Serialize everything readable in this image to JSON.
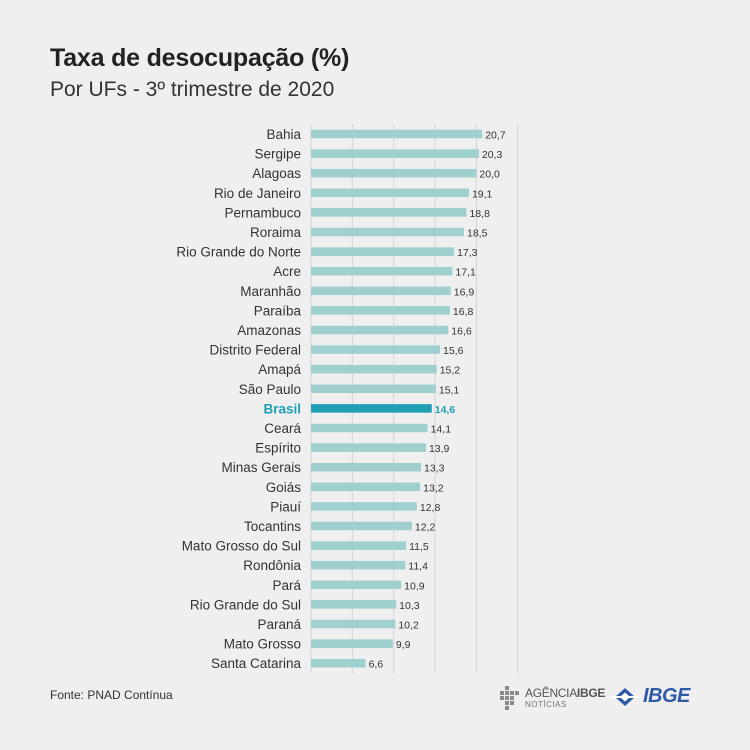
{
  "header": {
    "title": "Taxa de desocupação (%)",
    "subtitle": "Por UFs - 3º trimestre de 2020"
  },
  "footer": {
    "source": "Fonte: PNAD Contínua",
    "agencia_main": "AGÊNCIA",
    "agencia_bold": "IBGE",
    "agencia_sub": "NOTÍCIAS",
    "ibge_logo": "IBGE"
  },
  "colors": {
    "bar": "#9fcfcf",
    "highlight_bar": "#1f9fb4",
    "highlight_text": "#1f9fb4",
    "grid": "#d4d4d4",
    "brand_blue": "#2e5aa8"
  },
  "chart_data": {
    "type": "bar",
    "orientation": "horizontal",
    "highlight": "Brasil",
    "categories": [
      "Bahia",
      "Sergipe",
      "Alagoas",
      "Rio de Janeiro",
      "Pernambuco",
      "Roraima",
      "Rio Grande do Norte",
      "Acre",
      "Maranhão",
      "Paraíba",
      "Amazonas",
      "Distrito Federal",
      "Amapá",
      "São Paulo",
      "Brasil",
      "Ceará",
      "Espírito",
      "Minas Gerais",
      "Goiás",
      "Piauí",
      "Tocantins",
      "Mato Grosso do Sul",
      "Rondônia",
      "Pará",
      "Rio Grande do Sul",
      "Paraná",
      "Mato Grosso",
      "Santa Catarina"
    ],
    "values": [
      20.7,
      20.3,
      20.0,
      19.1,
      18.8,
      18.5,
      17.3,
      17.1,
      16.9,
      16.8,
      16.6,
      15.6,
      15.2,
      15.1,
      14.6,
      14.1,
      13.9,
      13.3,
      13.2,
      12.8,
      12.2,
      11.5,
      11.4,
      10.9,
      10.3,
      10.2,
      9.9,
      6.6
    ],
    "value_labels": [
      "20,7",
      "20,3",
      "20,0",
      "19,1",
      "18,8",
      "18,5",
      "17,3",
      "17,1",
      "16,9",
      "16,8",
      "16,6",
      "15,6",
      "15,2",
      "15,1",
      "14,6",
      "14,1",
      "13,9",
      "13,3",
      "13,2",
      "12,8",
      "12,2",
      "11,5",
      "11,4",
      "10,9",
      "10,3",
      "10,2",
      "9,9",
      "6,6"
    ],
    "xlim": [
      0,
      25
    ],
    "grid": true
  }
}
